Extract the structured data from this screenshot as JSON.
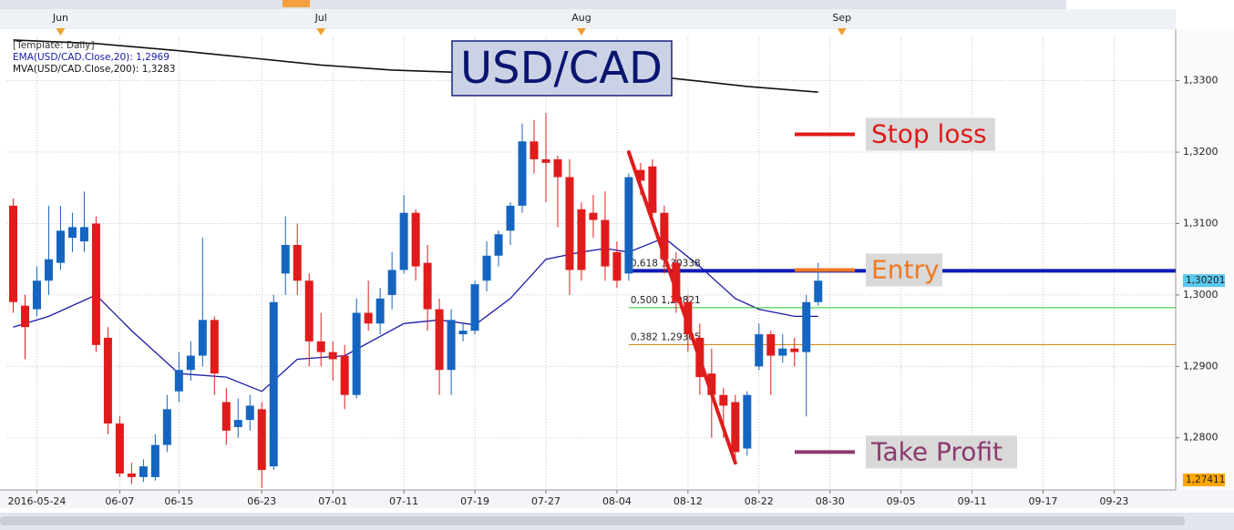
{
  "chart_data": {
    "type": "candlestick",
    "title": "USD/CAD",
    "legend": [
      "[Template: Daily]",
      "EMA(USD/CAD.Close,20): 1,2969",
      "MVA(USD/CAD.Close,200): 1,3283"
    ],
    "legend_colors": [
      "#333333",
      "#1a1aa8",
      "#111111"
    ],
    "up_color": "#1565c0",
    "down_color": "#e01b1b",
    "x": [
      0,
      1,
      2,
      3,
      4,
      5,
      6,
      7,
      8,
      9,
      10,
      11,
      12,
      13,
      14,
      15,
      16,
      17,
      18,
      19,
      20,
      21,
      22,
      23,
      24,
      25,
      26,
      27,
      28,
      29,
      30,
      31,
      32,
      33,
      34,
      35,
      36,
      37,
      38,
      39,
      40,
      41,
      42,
      43,
      44,
      45,
      46,
      47,
      48,
      49,
      50,
      51,
      52,
      53,
      54,
      55,
      56,
      57,
      58,
      59,
      60,
      61,
      62,
      63,
      64,
      65,
      66,
      67,
      68
    ],
    "open": [
      1.3125,
      1.2985,
      1.298,
      1.302,
      1.3045,
      1.308,
      1.3075,
      1.31,
      1.294,
      1.282,
      1.275,
      1.2745,
      1.2745,
      1.279,
      1.2865,
      1.2895,
      1.2915,
      1.2965,
      1.285,
      1.2815,
      1.2825,
      1.284,
      1.276,
      1.303,
      1.307,
      1.302,
      1.2935,
      1.292,
      1.2915,
      1.286,
      1.2975,
      1.296,
      1.3,
      1.3035,
      1.3115,
      1.3045,
      1.298,
      1.2895,
      1.2945,
      1.295,
      1.302,
      1.3055,
      1.309,
      1.3125,
      1.3215,
      1.319,
      1.319,
      1.3165,
      1.312,
      1.3115,
      1.3105,
      1.306,
      1.303,
      1.3175,
      1.318,
      1.3115,
      1.3045,
      1.299,
      1.294,
      1.289,
      1.286,
      1.285,
      1.2785,
      1.29,
      1.2945,
      1.2915,
      1.2925,
      1.292,
      1.299
    ],
    "high": [
      1.3135,
      1.3,
      1.304,
      1.3125,
      1.3125,
      1.3115,
      1.3145,
      1.311,
      1.2955,
      1.283,
      1.2765,
      1.277,
      1.2805,
      1.286,
      1.292,
      1.2935,
      1.308,
      1.297,
      1.287,
      1.2855,
      1.286,
      1.285,
      1.3,
      1.311,
      1.31,
      1.303,
      1.2975,
      1.2935,
      1.293,
      1.2995,
      1.302,
      1.301,
      1.306,
      1.314,
      1.312,
      1.307,
      1.2995,
      1.298,
      1.296,
      1.302,
      1.3075,
      1.309,
      1.313,
      1.324,
      1.3245,
      1.3255,
      1.3195,
      1.319,
      1.313,
      1.314,
      1.3145,
      1.3075,
      1.317,
      1.3185,
      1.319,
      1.3125,
      1.306,
      1.3,
      1.296,
      1.2925,
      1.287,
      1.286,
      1.2865,
      1.296,
      1.295,
      1.2945,
      1.294,
      1.3,
      1.3045
    ],
    "low": [
      1.2975,
      1.291,
      1.297,
      1.3,
      1.3035,
      1.306,
      1.306,
      1.292,
      1.2805,
      1.2745,
      1.2735,
      1.2738,
      1.274,
      1.278,
      1.285,
      1.288,
      1.29,
      1.286,
      1.279,
      1.28,
      1.281,
      1.273,
      1.2755,
      1.3,
      1.3,
      1.29,
      1.29,
      1.288,
      1.284,
      1.2855,
      1.295,
      1.2945,
      1.298,
      1.303,
      1.302,
      1.295,
      1.286,
      1.286,
      1.2935,
      1.2945,
      1.3005,
      1.304,
      1.307,
      1.3115,
      1.317,
      1.313,
      1.3095,
      1.3,
      1.302,
      1.308,
      1.302,
      1.301,
      1.302,
      1.314,
      1.31,
      1.303,
      1.2975,
      1.292,
      1.286,
      1.28,
      1.28,
      1.277,
      1.2775,
      1.2895,
      1.286,
      1.2905,
      1.29,
      1.283,
      1.2985
    ],
    "close": [
      1.299,
      1.2955,
      1.302,
      1.305,
      1.309,
      1.3095,
      1.3095,
      1.293,
      1.282,
      1.275,
      1.2745,
      1.276,
      1.279,
      1.284,
      1.2895,
      1.2915,
      1.2965,
      1.289,
      1.281,
      1.2825,
      1.2845,
      1.2755,
      1.299,
      1.307,
      1.302,
      1.2935,
      1.292,
      1.291,
      1.286,
      1.2975,
      1.296,
      1.2995,
      1.3035,
      1.3115,
      1.304,
      1.298,
      1.2895,
      1.2965,
      1.295,
      1.3015,
      1.3055,
      1.3085,
      1.3125,
      1.3215,
      1.319,
      1.3185,
      1.3165,
      1.3035,
      1.3035,
      1.3105,
      1.304,
      1.302,
      1.3165,
      1.316,
      1.3115,
      1.305,
      1.299,
      1.2945,
      1.2885,
      1.286,
      1.2845,
      1.278,
      1.286,
      1.2945,
      1.2915,
      1.2925,
      1.292,
      1.299,
      1.302
    ],
    "series": [
      {
        "color": "#1a1aa8",
        "x": [
          0,
          3,
          7,
          10,
          14,
          18,
          21,
          24,
          28,
          33,
          36,
          39,
          42,
          45,
          48,
          50,
          52,
          55,
          58,
          61,
          63,
          66,
          68
        ],
        "values": [
          1.2955,
          1.297,
          1.3,
          1.295,
          1.289,
          1.2885,
          1.2865,
          1.291,
          1.2915,
          1.296,
          1.2965,
          1.2958,
          1.2995,
          1.305,
          1.306,
          1.3065,
          1.306,
          1.308,
          1.304,
          1.2995,
          1.298,
          1.297,
          1.297
        ]
      },
      {
        "color": "#111111",
        "x": [
          0,
          7,
          14,
          20,
          26,
          32,
          37,
          43,
          48,
          53,
          57,
          62,
          68
        ],
        "values": [
          1.3357,
          1.3352,
          1.3342,
          1.3332,
          1.3322,
          1.3315,
          1.3312,
          1.3312,
          1.3311,
          1.3308,
          1.3301,
          1.3292,
          1.3284
        ]
      }
    ],
    "xlim": [
      -0.5,
      98.2
    ],
    "xticks": [
      {
        "value": 2,
        "label": "2016-05-24"
      },
      {
        "value": 9,
        "label": "06-07"
      },
      {
        "value": 14,
        "label": "06-15"
      },
      {
        "value": 21,
        "label": "06-23"
      },
      {
        "value": 27,
        "label": "07-01"
      },
      {
        "value": 33,
        "label": "07-11"
      },
      {
        "value": 39,
        "label": "07-19"
      },
      {
        "value": 45,
        "label": "07-27"
      },
      {
        "value": 51,
        "label": "08-04"
      },
      {
        "value": 57,
        "label": "08-12"
      },
      {
        "value": 63,
        "label": "08-22"
      },
      {
        "value": 69,
        "label": "08-30"
      },
      {
        "value": 75,
        "label": "09-05"
      },
      {
        "value": 81,
        "label": "09-11"
      },
      {
        "value": 87,
        "label": "09-17"
      },
      {
        "value": 93,
        "label": "09-23"
      }
    ],
    "month_ticks": [
      {
        "value": 4,
        "label": "Jun"
      },
      {
        "value": 26,
        "label": "Jul"
      },
      {
        "value": 48,
        "label": "Aug"
      },
      {
        "value": 70,
        "label": "Sep"
      }
    ],
    "ylim": [
      1.2727,
      1.3362
    ],
    "yticks": [
      {
        "value": 1.28,
        "label": "1,2800"
      },
      {
        "value": 1.29,
        "label": "1,2900"
      },
      {
        "value": 1.3,
        "label": "1,3000"
      },
      {
        "value": 1.31,
        "label": "1,3100"
      },
      {
        "value": 1.32,
        "label": "1,3200"
      },
      {
        "value": 1.33,
        "label": "1,3300"
      }
    ],
    "grid": true,
    "price_labels": [
      {
        "value": 1.30201,
        "label": "1,30201",
        "color": "#5bc8f0"
      },
      {
        "value": 1.27411,
        "label": "1,27411",
        "color": "#ffa500"
      }
    ],
    "fib_start": 52,
    "fib_levels": [
      {
        "value": 1.30338,
        "label": "0,618 1,30338",
        "color": "#0a1ab8",
        "width": 4
      },
      {
        "value": 1.29821,
        "label": "0,500 1,29821",
        "color": "#22cc22",
        "width": 1
      },
      {
        "value": 1.29305,
        "label": "0,382 1,29305",
        "color": "#d07a00",
        "width": 1
      }
    ],
    "trend_line": {
      "x": [
        52,
        61
      ],
      "values": [
        1.32,
        1.2765
      ],
      "color": "#e01b1b"
    },
    "annotations": [
      {
        "text": "Stop loss",
        "value": 1.3225,
        "color": "#e01b1b"
      },
      {
        "text": "Entry",
        "value": 1.3035,
        "color": "#f07820"
      },
      {
        "text": "Take Profit",
        "value": 1.278,
        "color": "#8b3a6e"
      }
    ]
  }
}
